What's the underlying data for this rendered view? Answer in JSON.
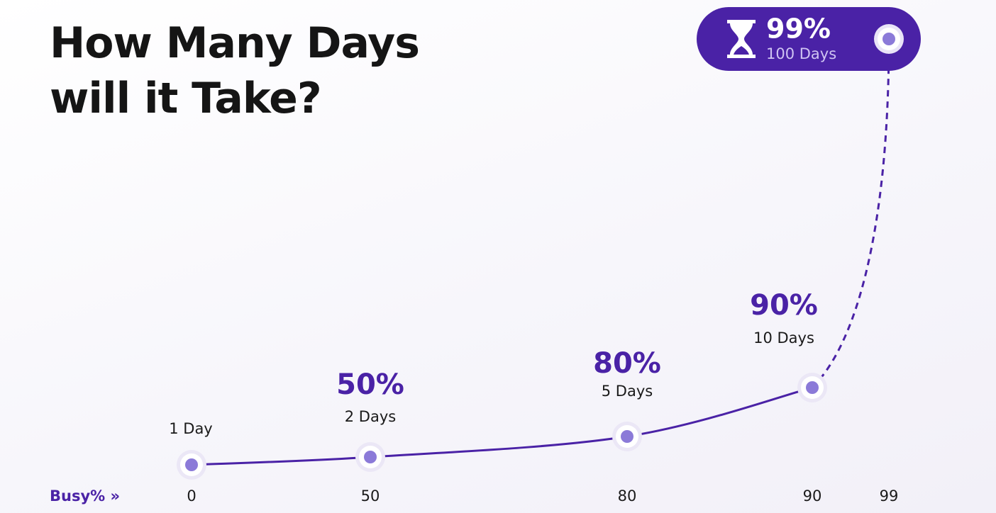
{
  "chart_data": {
    "type": "line",
    "title": "How Many Days will it Take?",
    "x_label": "Busy% »",
    "categories": [
      "0",
      "50",
      "80",
      "90",
      "99"
    ],
    "point_labels": [
      null,
      "50%",
      "80%",
      "90%",
      "99%"
    ],
    "series": [
      {
        "name": null,
        "color": "#4a22a6",
        "values": [
          1,
          2,
          5,
          10,
          100
        ],
        "value_labels": [
          "1 Day",
          "2 Days",
          "5 Days",
          "10 Days",
          "100 Days"
        ]
      }
    ]
  }
}
